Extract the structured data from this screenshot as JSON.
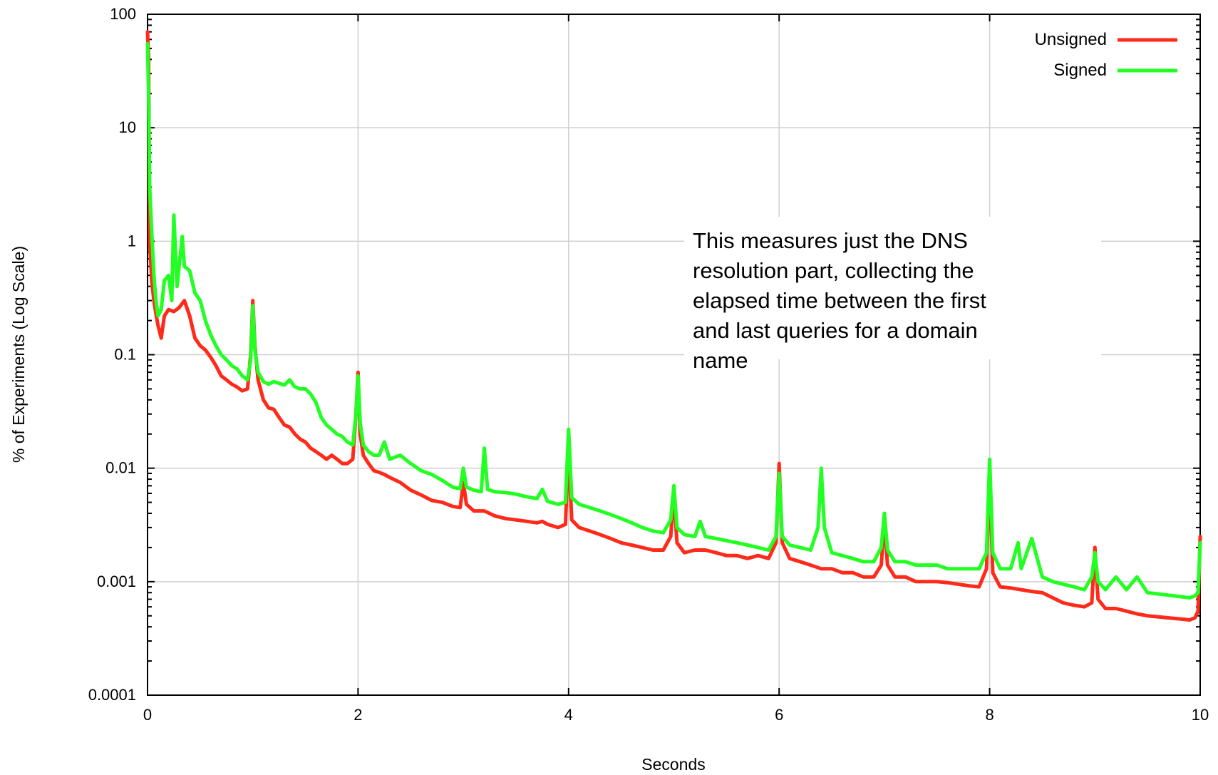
{
  "chart_data": {
    "type": "line",
    "title": "",
    "xlabel": "Seconds",
    "ylabel": "% of Experiments (Log Scale)",
    "xlim": [
      0,
      10
    ],
    "ylim": [
      0.0001,
      100
    ],
    "yscale": "log",
    "grid": true,
    "legend_position": "top-right",
    "x_ticks": [
      "0",
      "2",
      "4",
      "6",
      "8",
      "10"
    ],
    "y_ticks": [
      "0.0001",
      "0.001",
      "0.01",
      "0.1",
      "1",
      "10",
      "100"
    ],
    "annotation_lines": [
      "This measures just the DNS",
      "resolution part, collecting the",
      "elapsed time between the first",
      "and last queries for a domain",
      "name"
    ],
    "series": [
      {
        "name": "Unsigned",
        "color": "#ff2a1a",
        "x": [
          0.0,
          0.01,
          0.02,
          0.04,
          0.06,
          0.08,
          0.1,
          0.13,
          0.16,
          0.2,
          0.25,
          0.3,
          0.35,
          0.4,
          0.45,
          0.5,
          0.55,
          0.6,
          0.65,
          0.7,
          0.75,
          0.8,
          0.85,
          0.9,
          0.95,
          0.98,
          1.0,
          1.02,
          1.05,
          1.1,
          1.15,
          1.2,
          1.25,
          1.3,
          1.35,
          1.4,
          1.45,
          1.5,
          1.55,
          1.6,
          1.65,
          1.7,
          1.75,
          1.8,
          1.85,
          1.9,
          1.95,
          1.98,
          2.0,
          2.02,
          2.05,
          2.1,
          2.15,
          2.2,
          2.25,
          2.3,
          2.4,
          2.5,
          2.6,
          2.7,
          2.8,
          2.9,
          2.97,
          3.0,
          3.03,
          3.1,
          3.2,
          3.3,
          3.4,
          3.5,
          3.6,
          3.7,
          3.75,
          3.8,
          3.9,
          3.97,
          4.0,
          4.03,
          4.1,
          4.2,
          4.3,
          4.4,
          4.5,
          4.6,
          4.7,
          4.8,
          4.9,
          4.97,
          5.0,
          5.03,
          5.1,
          5.2,
          5.3,
          5.4,
          5.5,
          5.6,
          5.7,
          5.8,
          5.9,
          5.97,
          6.0,
          6.03,
          6.1,
          6.2,
          6.3,
          6.4,
          6.5,
          6.6,
          6.7,
          6.8,
          6.9,
          6.97,
          7.0,
          7.03,
          7.1,
          7.2,
          7.3,
          7.4,
          7.5,
          7.6,
          7.7,
          7.8,
          7.9,
          7.97,
          8.0,
          8.03,
          8.1,
          8.2,
          8.3,
          8.4,
          8.5,
          8.6,
          8.7,
          8.8,
          8.9,
          8.97,
          9.0,
          9.03,
          9.1,
          9.2,
          9.3,
          9.4,
          9.5,
          9.6,
          9.7,
          9.8,
          9.9,
          9.95,
          9.98,
          10.0
        ],
        "y": [
          70,
          40,
          1.0,
          0.45,
          0.3,
          0.23,
          0.18,
          0.14,
          0.22,
          0.25,
          0.24,
          0.26,
          0.3,
          0.22,
          0.14,
          0.12,
          0.11,
          0.095,
          0.08,
          0.065,
          0.06,
          0.055,
          0.052,
          0.048,
          0.05,
          0.1,
          0.3,
          0.12,
          0.06,
          0.04,
          0.034,
          0.033,
          0.028,
          0.024,
          0.023,
          0.02,
          0.018,
          0.017,
          0.015,
          0.014,
          0.013,
          0.012,
          0.013,
          0.012,
          0.011,
          0.011,
          0.012,
          0.03,
          0.07,
          0.02,
          0.013,
          0.011,
          0.0095,
          0.0092,
          0.0088,
          0.0083,
          0.0075,
          0.0064,
          0.0058,
          0.0052,
          0.005,
          0.0046,
          0.0045,
          0.0075,
          0.0048,
          0.0042,
          0.0042,
          0.0038,
          0.0036,
          0.0035,
          0.0034,
          0.0033,
          0.0034,
          0.0032,
          0.003,
          0.0032,
          0.015,
          0.0035,
          0.003,
          0.0028,
          0.0026,
          0.0024,
          0.0022,
          0.0021,
          0.002,
          0.0019,
          0.0019,
          0.0025,
          0.006,
          0.0022,
          0.0018,
          0.0019,
          0.0019,
          0.0018,
          0.0017,
          0.0017,
          0.0016,
          0.0017,
          0.0016,
          0.0022,
          0.011,
          0.0022,
          0.0016,
          0.0015,
          0.0014,
          0.0013,
          0.0013,
          0.0012,
          0.0012,
          0.0011,
          0.0011,
          0.0014,
          0.0035,
          0.0014,
          0.0011,
          0.0011,
          0.001,
          0.001,
          0.001,
          0.00098,
          0.00095,
          0.00092,
          0.0009,
          0.0013,
          0.009,
          0.0012,
          0.0009,
          0.00088,
          0.00085,
          0.00082,
          0.0008,
          0.00072,
          0.00065,
          0.00062,
          0.0006,
          0.00065,
          0.002,
          0.0007,
          0.00058,
          0.00058,
          0.00055,
          0.00052,
          0.0005,
          0.00049,
          0.00048,
          0.00047,
          0.00046,
          0.00048,
          0.00055,
          0.0025
        ]
      },
      {
        "name": "Signed",
        "color": "#22ff22",
        "x": [
          0.0,
          0.01,
          0.02,
          0.04,
          0.06,
          0.08,
          0.1,
          0.13,
          0.16,
          0.2,
          0.23,
          0.25,
          0.28,
          0.3,
          0.33,
          0.35,
          0.4,
          0.45,
          0.5,
          0.55,
          0.6,
          0.65,
          0.7,
          0.75,
          0.8,
          0.85,
          0.9,
          0.95,
          0.98,
          1.0,
          1.02,
          1.05,
          1.1,
          1.15,
          1.2,
          1.25,
          1.3,
          1.35,
          1.4,
          1.45,
          1.5,
          1.55,
          1.6,
          1.65,
          1.7,
          1.75,
          1.8,
          1.85,
          1.9,
          1.95,
          1.98,
          2.0,
          2.02,
          2.05,
          2.1,
          2.15,
          2.2,
          2.25,
          2.3,
          2.4,
          2.5,
          2.6,
          2.7,
          2.8,
          2.9,
          2.97,
          3.0,
          3.03,
          3.1,
          3.17,
          3.2,
          3.23,
          3.3,
          3.4,
          3.5,
          3.6,
          3.7,
          3.75,
          3.8,
          3.9,
          3.97,
          4.0,
          4.03,
          4.1,
          4.2,
          4.3,
          4.4,
          4.5,
          4.6,
          4.7,
          4.8,
          4.9,
          4.97,
          5.0,
          5.03,
          5.1,
          5.2,
          5.25,
          5.3,
          5.4,
          5.5,
          5.6,
          5.7,
          5.8,
          5.9,
          5.97,
          6.0,
          6.03,
          6.1,
          6.2,
          6.3,
          6.37,
          6.4,
          6.43,
          6.5,
          6.6,
          6.7,
          6.8,
          6.9,
          6.97,
          7.0,
          7.03,
          7.1,
          7.2,
          7.3,
          7.4,
          7.5,
          7.6,
          7.7,
          7.8,
          7.9,
          7.97,
          8.0,
          8.03,
          8.1,
          8.2,
          8.27,
          8.3,
          8.4,
          8.5,
          8.6,
          8.7,
          8.8,
          8.9,
          8.97,
          9.0,
          9.03,
          9.1,
          9.2,
          9.3,
          9.4,
          9.5,
          9.6,
          9.7,
          9.8,
          9.9,
          9.95,
          9.98,
          10.0
        ],
        "y": [
          55,
          20,
          3.0,
          1.2,
          0.5,
          0.3,
          0.22,
          0.25,
          0.45,
          0.5,
          0.3,
          1.7,
          0.4,
          0.6,
          1.1,
          0.6,
          0.55,
          0.35,
          0.3,
          0.2,
          0.15,
          0.12,
          0.1,
          0.09,
          0.08,
          0.075,
          0.065,
          0.06,
          0.09,
          0.27,
          0.11,
          0.07,
          0.058,
          0.055,
          0.058,
          0.056,
          0.054,
          0.06,
          0.052,
          0.05,
          0.05,
          0.045,
          0.038,
          0.028,
          0.024,
          0.022,
          0.02,
          0.019,
          0.017,
          0.016,
          0.03,
          0.065,
          0.025,
          0.016,
          0.014,
          0.013,
          0.013,
          0.017,
          0.012,
          0.013,
          0.011,
          0.0095,
          0.0088,
          0.0078,
          0.0068,
          0.0066,
          0.01,
          0.0068,
          0.0064,
          0.0062,
          0.015,
          0.0065,
          0.0062,
          0.0061,
          0.0059,
          0.0056,
          0.0054,
          0.0065,
          0.0051,
          0.0048,
          0.005,
          0.022,
          0.0055,
          0.0048,
          0.0045,
          0.0042,
          0.0039,
          0.0036,
          0.0033,
          0.003,
          0.0028,
          0.0027,
          0.0035,
          0.007,
          0.003,
          0.0026,
          0.0025,
          0.0034,
          0.0025,
          0.0024,
          0.0023,
          0.0022,
          0.0021,
          0.002,
          0.0019,
          0.0025,
          0.009,
          0.0025,
          0.0021,
          0.002,
          0.0019,
          0.003,
          0.01,
          0.003,
          0.0018,
          0.0017,
          0.0016,
          0.0015,
          0.0015,
          0.002,
          0.004,
          0.0019,
          0.0015,
          0.0015,
          0.0014,
          0.0014,
          0.0014,
          0.0013,
          0.0013,
          0.0013,
          0.0013,
          0.0018,
          0.012,
          0.0018,
          0.0013,
          0.0013,
          0.0022,
          0.0013,
          0.0024,
          0.0011,
          0.001,
          0.00095,
          0.0009,
          0.00085,
          0.0011,
          0.0018,
          0.001,
          0.00085,
          0.0011,
          0.00085,
          0.0011,
          0.0008,
          0.00078,
          0.00076,
          0.00074,
          0.00072,
          0.00075,
          0.0008,
          0.0022
        ]
      }
    ]
  }
}
